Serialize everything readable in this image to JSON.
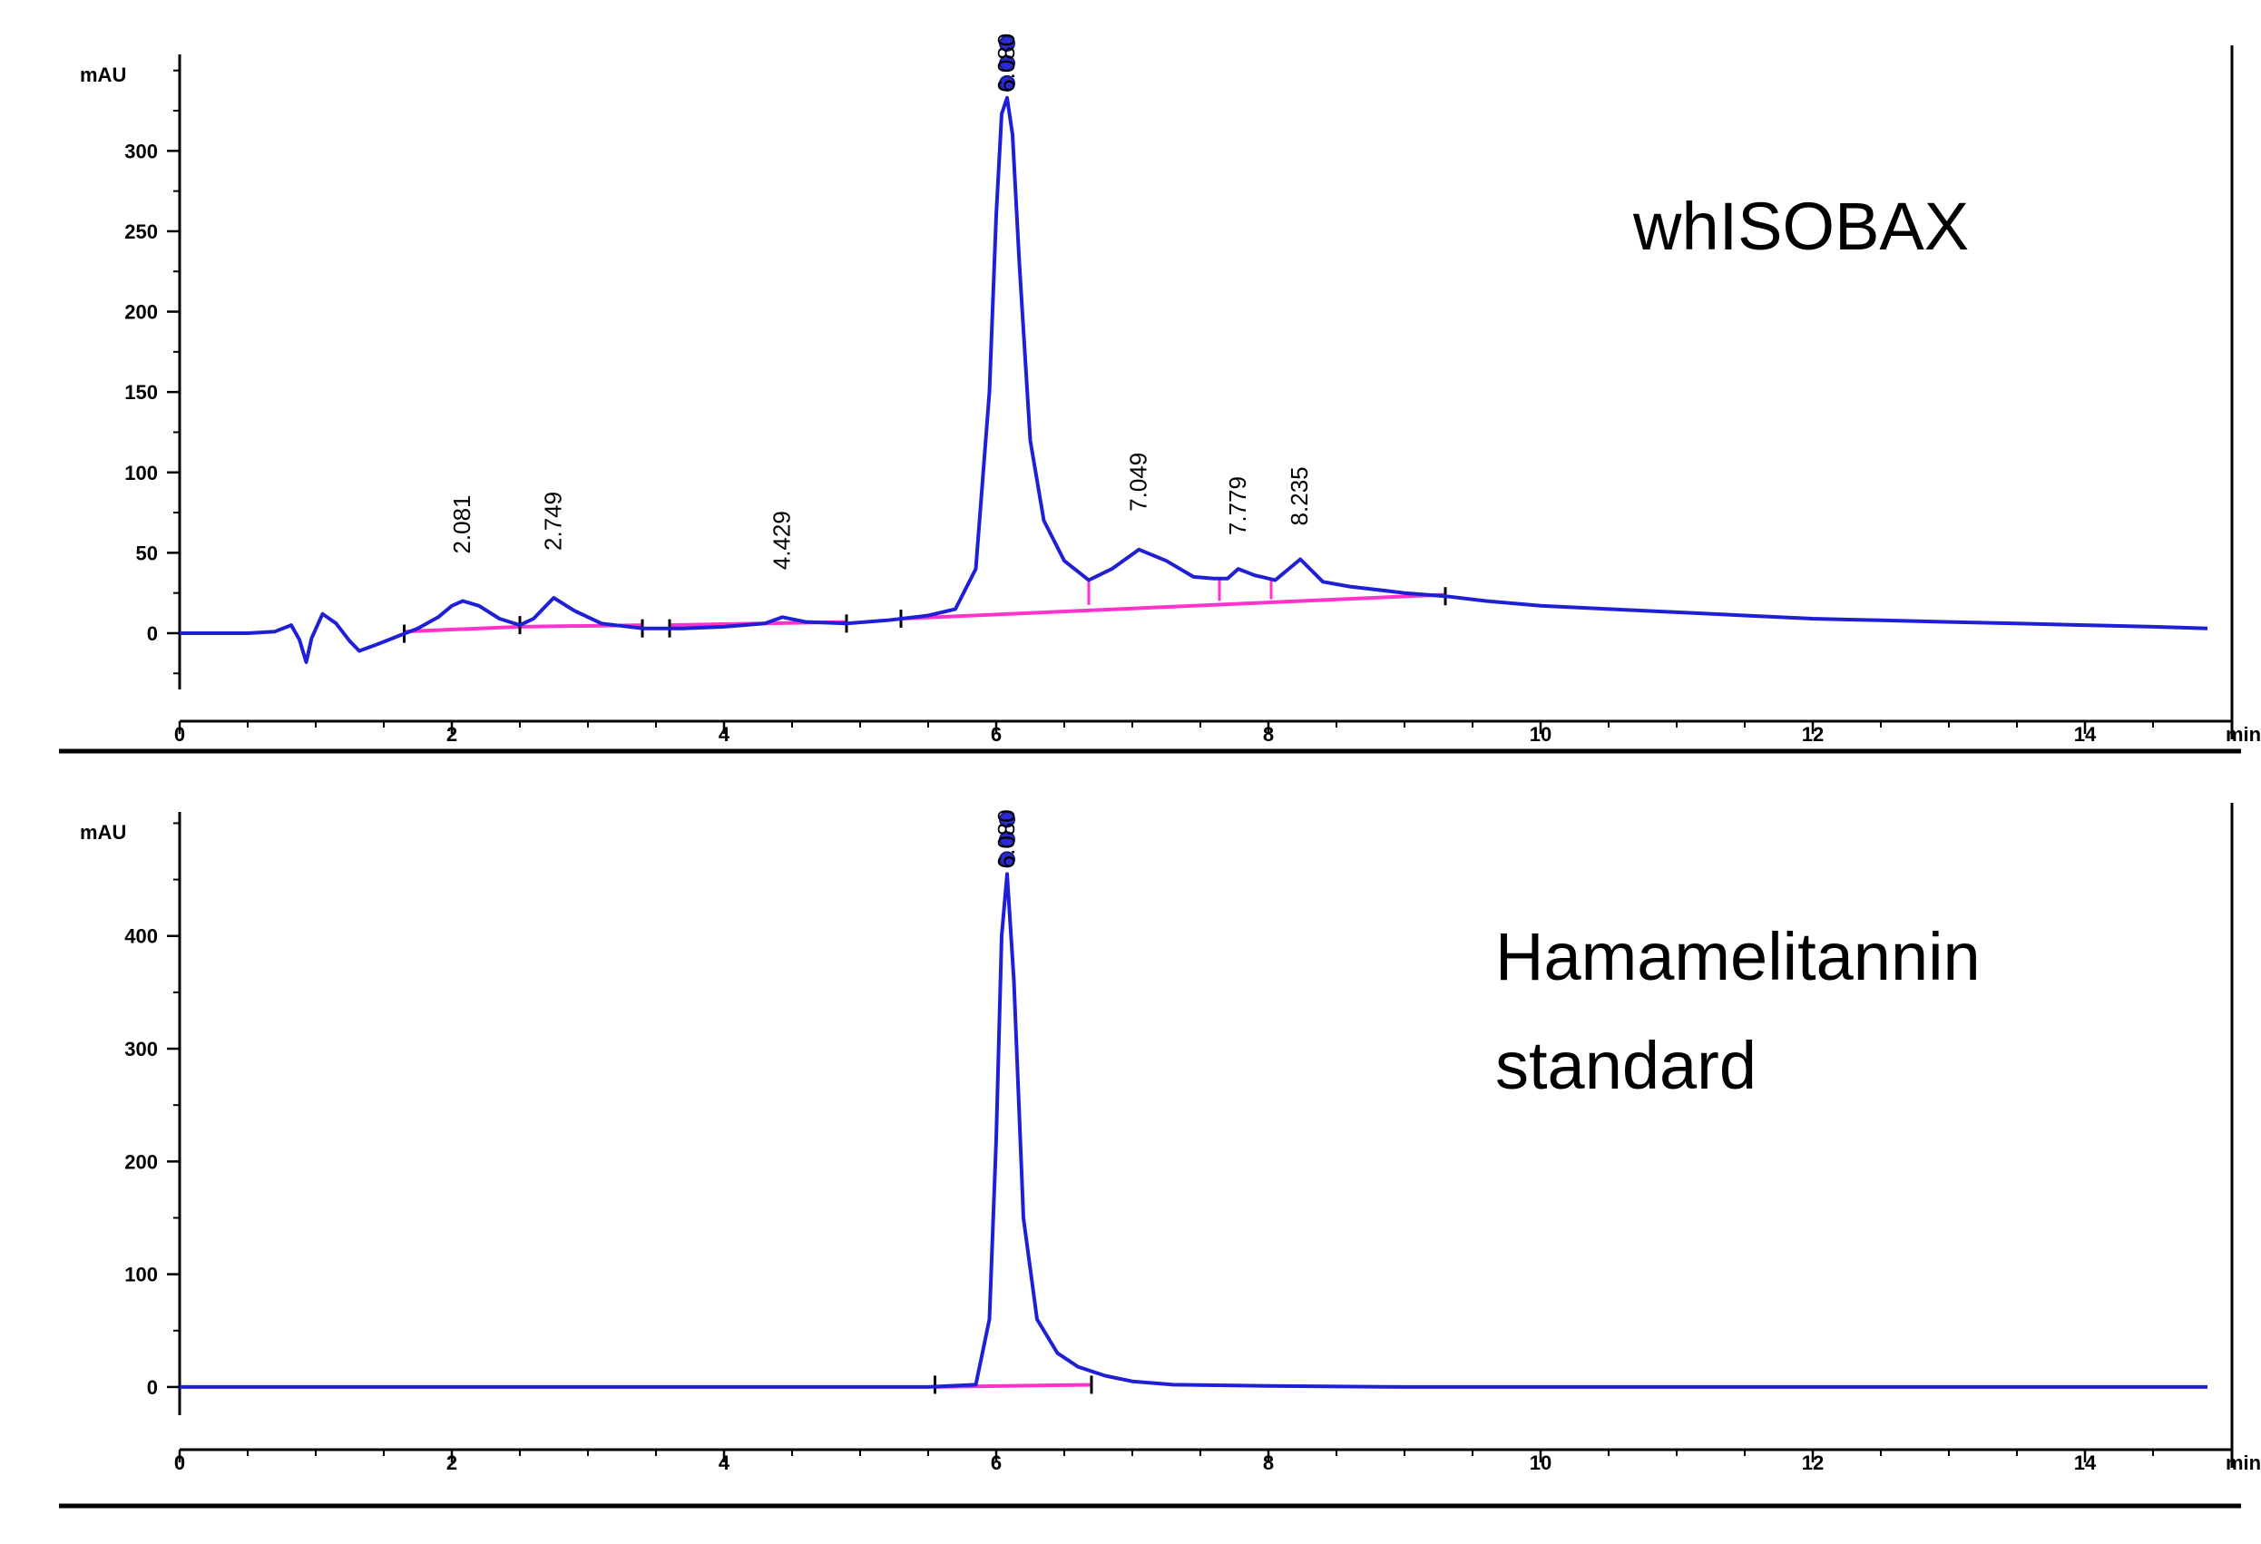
{
  "chart_data": [
    {
      "type": "line",
      "title": "whISOBAX",
      "ylabel": "mAU",
      "xlabel": "min",
      "xlim": [
        0,
        15
      ],
      "ylim": [
        -35,
        360
      ],
      "x_ticks": [
        0,
        2,
        4,
        6,
        8,
        10,
        12,
        14
      ],
      "y_ticks": [
        0,
        50,
        100,
        150,
        200,
        250,
        300
      ],
      "grid": false,
      "series": [
        {
          "x": [
            0,
            0.5,
            0.7,
            0.82,
            0.88,
            0.93,
            0.97,
            1.05,
            1.15,
            1.25,
            1.32,
            1.45,
            1.6,
            1.75,
            1.9,
            2.0,
            2.081,
            2.2,
            2.35,
            2.5,
            2.6,
            2.749,
            2.9,
            3.1,
            3.4,
            3.7,
            4.0,
            4.3,
            4.429,
            4.6,
            4.9,
            5.2,
            5.5,
            5.7,
            5.85,
            5.95,
            6.0,
            6.04,
            6.08,
            6.12,
            6.17,
            6.25,
            6.35,
            6.5,
            6.68,
            6.85,
            7.049,
            7.25,
            7.45,
            7.6,
            7.7,
            7.779,
            7.9,
            8.05,
            8.235,
            8.4,
            8.6,
            8.8,
            9.0,
            9.3,
            9.6,
            10.0,
            10.5,
            11.0,
            11.5,
            12.0,
            12.5,
            13.0,
            13.5,
            14.0,
            14.5,
            14.9
          ],
          "y": [
            0,
            0,
            1,
            5,
            -4,
            -18,
            -3,
            12,
            6,
            -5,
            -11,
            -7,
            -2,
            3,
            10,
            17,
            20,
            17,
            9,
            5,
            9,
            22,
            14,
            6,
            3,
            3,
            4,
            6,
            10,
            7,
            6,
            8,
            11,
            15,
            40,
            150,
            260,
            323,
            333,
            310,
            230,
            120,
            70,
            45,
            33,
            40,
            52,
            45,
            35,
            34,
            34,
            40,
            36,
            33,
            46,
            32,
            29,
            27,
            25,
            23,
            20,
            17,
            15,
            13,
            11,
            9,
            8,
            7,
            6,
            5,
            4,
            3
          ]
        }
      ],
      "peak_labels": [
        "2.081",
        "2.749",
        "4.429",
        "6.080",
        "7.049",
        "7.779",
        "8.235"
      ]
    },
    {
      "type": "line",
      "title": "Hamamelitannin\nstandard",
      "title_lines": [
        "Hamamelitannin",
        "standard"
      ],
      "ylabel": "mAU",
      "xlabel": "min",
      "xlim": [
        0,
        15
      ],
      "ylim": [
        -25,
        510
      ],
      "x_ticks": [
        0,
        2,
        4,
        6,
        8,
        10,
        12,
        14
      ],
      "y_ticks": [
        0,
        100,
        200,
        300,
        400
      ],
      "grid": false,
      "series": [
        {
          "x": [
            0,
            2,
            4,
            5,
            5.5,
            5.85,
            5.95,
            6.0,
            6.04,
            6.08,
            6.13,
            6.2,
            6.3,
            6.45,
            6.6,
            6.8,
            7.0,
            7.3,
            8,
            9,
            10,
            12,
            14,
            14.9
          ],
          "y": [
            0,
            0,
            0,
            0,
            0,
            2,
            60,
            220,
            400,
            455,
            360,
            150,
            60,
            30,
            18,
            10,
            5,
            2,
            1,
            0,
            0,
            0,
            0,
            0
          ]
        }
      ],
      "peak_labels": [
        "6.080"
      ]
    }
  ]
}
